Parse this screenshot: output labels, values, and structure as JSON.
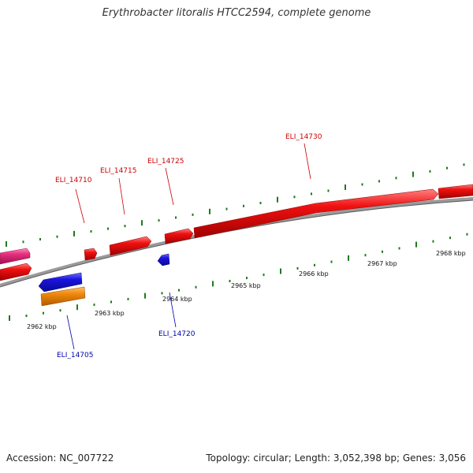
{
  "title": "Erythrobacter litoralis HTCC2594, complete genome",
  "footer": {
    "accession": "Accession: NC_007722",
    "summary": "Topology: circular; Length: 3,052,398 bp; Genes: 3,056"
  },
  "colors": {
    "forward_strand": "#e8090b",
    "reverse_strand": "#1a14e0",
    "pink_feature": "#e8307f",
    "orange_feature": "#f28a0c",
    "tick": "#1e7a1e",
    "backbone": "#808080",
    "forward_label": "#cc0000",
    "reverse_label": "#0000aa"
  },
  "scale_ticks": [
    "2962 kbp",
    "2963 kbp",
    "2964 kbp",
    "2965 kbp",
    "2966 kbp",
    "2967 kbp",
    "2968 kbp"
  ],
  "gene_labels": [
    {
      "name": "ELI_14705",
      "strand": "reverse"
    },
    {
      "name": "ELI_14710",
      "strand": "forward"
    },
    {
      "name": "ELI_14715",
      "strand": "forward"
    },
    {
      "name": "ELI_14720",
      "strand": "reverse"
    },
    {
      "name": "ELI_14725",
      "strand": "forward"
    },
    {
      "name": "ELI_14730",
      "strand": "forward"
    }
  ]
}
